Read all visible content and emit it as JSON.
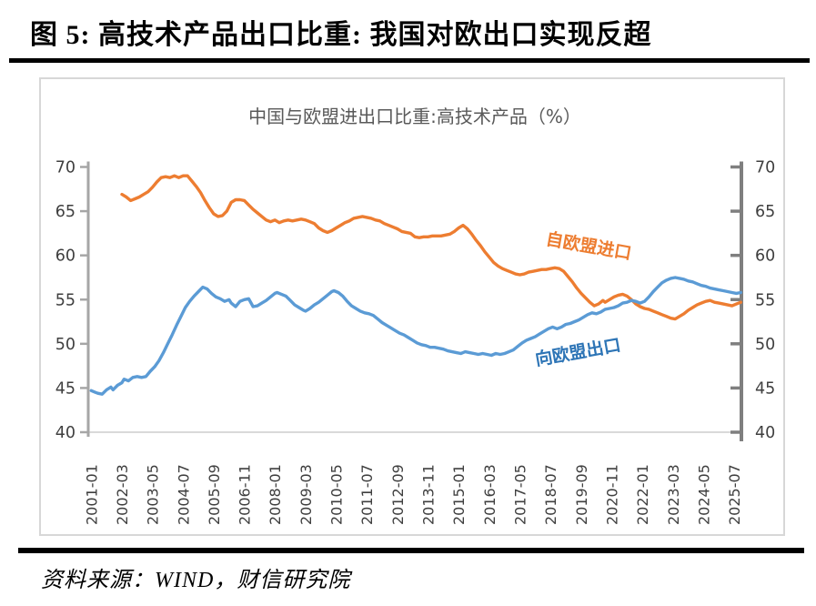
{
  "page": {
    "title": "图 5: 高技术产品出口比重: 我国对欧出口实现反超",
    "source": "资料来源：WIND，财信研究院"
  },
  "chart_data": {
    "type": "line",
    "title": "中国与欧盟进出口比重:高技术产品（%）",
    "title_color": "#595959",
    "grid": false,
    "legend_position": "inline-labels",
    "y_axis": {
      "min": 40,
      "max": 70,
      "step": 5,
      "ticks": [
        70,
        65,
        60,
        55,
        50,
        45,
        40
      ],
      "shown_left": true,
      "shown_right": true,
      "label_color": "#3f3f3f",
      "left_axis_color": "#a6a6a6",
      "right_axis_color": "#7f7f7f",
      "baseline_color": "#d9d9d9"
    },
    "x_axis": {
      "unit": "months since 2001-01",
      "months_per_tick": 14,
      "tick_labels": [
        "2001-01",
        "2002-03",
        "2003-05",
        "2004-07",
        "2005-09",
        "2006-11",
        "2008-01",
        "2009-03",
        "2010-05",
        "2011-07",
        "2012-09",
        "2013-11",
        "2015-01",
        "2016-03",
        "2017-05",
        "2018-07",
        "2019-09",
        "2020-11",
        "2022-01",
        "2023-03",
        "2024-05",
        "2025-07"
      ],
      "label_color": "#3f3f3f",
      "label_rotation": -90
    },
    "series": [
      {
        "name": "自欧盟进口",
        "color": "#ED7D31",
        "label": {
          "text": "自欧盟进口",
          "m": 227,
          "v": 60.4,
          "rotate": 10,
          "color": "#ED7D31"
        },
        "points": [
          [
            14,
            66.9
          ],
          [
            16,
            66.6
          ],
          [
            18,
            66.2
          ],
          [
            20,
            66.4
          ],
          [
            22,
            66.6
          ],
          [
            24,
            66.9
          ],
          [
            26,
            67.2
          ],
          [
            28,
            67.7
          ],
          [
            30,
            68.3
          ],
          [
            32,
            68.8
          ],
          [
            34,
            68.9
          ],
          [
            36,
            68.8
          ],
          [
            38,
            69.0
          ],
          [
            40,
            68.8
          ],
          [
            42,
            69.0
          ],
          [
            44,
            69.0
          ],
          [
            46,
            68.4
          ],
          [
            48,
            67.8
          ],
          [
            50,
            67.1
          ],
          [
            52,
            66.2
          ],
          [
            54,
            65.4
          ],
          [
            56,
            64.7
          ],
          [
            58,
            64.4
          ],
          [
            60,
            64.5
          ],
          [
            62,
            65.0
          ],
          [
            64,
            66.0
          ],
          [
            66,
            66.3
          ],
          [
            68,
            66.3
          ],
          [
            70,
            66.2
          ],
          [
            72,
            65.7
          ],
          [
            74,
            65.2
          ],
          [
            76,
            64.8
          ],
          [
            78,
            64.4
          ],
          [
            80,
            64.0
          ],
          [
            82,
            63.8
          ],
          [
            84,
            64.0
          ],
          [
            86,
            63.7
          ],
          [
            88,
            63.9
          ],
          [
            90,
            64.0
          ],
          [
            92,
            63.9
          ],
          [
            94,
            64.0
          ],
          [
            96,
            64.1
          ],
          [
            98,
            64.0
          ],
          [
            100,
            63.8
          ],
          [
            102,
            63.6
          ],
          [
            104,
            63.1
          ],
          [
            106,
            62.8
          ],
          [
            108,
            62.6
          ],
          [
            110,
            62.8
          ],
          [
            112,
            63.1
          ],
          [
            114,
            63.4
          ],
          [
            116,
            63.7
          ],
          [
            118,
            63.9
          ],
          [
            120,
            64.2
          ],
          [
            122,
            64.3
          ],
          [
            124,
            64.4
          ],
          [
            126,
            64.3
          ],
          [
            128,
            64.2
          ],
          [
            130,
            64.0
          ],
          [
            132,
            63.9
          ],
          [
            134,
            63.6
          ],
          [
            136,
            63.4
          ],
          [
            138,
            63.2
          ],
          [
            140,
            63.0
          ],
          [
            142,
            62.7
          ],
          [
            144,
            62.6
          ],
          [
            146,
            62.5
          ],
          [
            148,
            62.1
          ],
          [
            150,
            62.0
          ],
          [
            152,
            62.1
          ],
          [
            154,
            62.1
          ],
          [
            156,
            62.2
          ],
          [
            158,
            62.2
          ],
          [
            160,
            62.2
          ],
          [
            162,
            62.3
          ],
          [
            164,
            62.4
          ],
          [
            166,
            62.7
          ],
          [
            168,
            63.1
          ],
          [
            170,
            63.4
          ],
          [
            172,
            63.0
          ],
          [
            174,
            62.4
          ],
          [
            176,
            61.7
          ],
          [
            178,
            61.1
          ],
          [
            180,
            60.4
          ],
          [
            182,
            59.8
          ],
          [
            184,
            59.2
          ],
          [
            186,
            58.8
          ],
          [
            188,
            58.5
          ],
          [
            190,
            58.3
          ],
          [
            192,
            58.1
          ],
          [
            194,
            57.9
          ],
          [
            196,
            57.8
          ],
          [
            198,
            57.9
          ],
          [
            200,
            58.1
          ],
          [
            202,
            58.2
          ],
          [
            204,
            58.3
          ],
          [
            206,
            58.4
          ],
          [
            208,
            58.4
          ],
          [
            210,
            58.5
          ],
          [
            212,
            58.6
          ],
          [
            214,
            58.5
          ],
          [
            216,
            58.2
          ],
          [
            218,
            57.6
          ],
          [
            220,
            57.0
          ],
          [
            222,
            56.3
          ],
          [
            224,
            55.7
          ],
          [
            226,
            55.2
          ],
          [
            228,
            54.7
          ],
          [
            230,
            54.3
          ],
          [
            232,
            54.5
          ],
          [
            234,
            54.9
          ],
          [
            235,
            54.7
          ],
          [
            237,
            55.0
          ],
          [
            239,
            55.3
          ],
          [
            241,
            55.5
          ],
          [
            243,
            55.6
          ],
          [
            245,
            55.4
          ],
          [
            247,
            55.0
          ],
          [
            249,
            54.5
          ],
          [
            251,
            54.2
          ],
          [
            253,
            54.0
          ],
          [
            255,
            53.9
          ],
          [
            257,
            53.7
          ],
          [
            259,
            53.5
          ],
          [
            261,
            53.3
          ],
          [
            263,
            53.1
          ],
          [
            265,
            52.9
          ],
          [
            267,
            52.8
          ],
          [
            269,
            53.1
          ],
          [
            271,
            53.4
          ],
          [
            273,
            53.8
          ],
          [
            275,
            54.1
          ],
          [
            277,
            54.4
          ],
          [
            279,
            54.6
          ],
          [
            281,
            54.8
          ],
          [
            283,
            54.9
          ],
          [
            285,
            54.7
          ],
          [
            287,
            54.6
          ],
          [
            289,
            54.5
          ],
          [
            291,
            54.4
          ],
          [
            293,
            54.3
          ],
          [
            295,
            54.5
          ],
          [
            297,
            54.7
          ]
        ]
      },
      {
        "name": "向欧盟出口",
        "color": "#5B9BD5",
        "label": {
          "text": "向欧盟出口",
          "m": 223,
          "v": 48.4,
          "rotate": -10,
          "color": "#2E75B6"
        },
        "points": [
          [
            0,
            44.7
          ],
          [
            2,
            44.5
          ],
          [
            3,
            44.4
          ],
          [
            5,
            44.3
          ],
          [
            7,
            44.8
          ],
          [
            9,
            45.1
          ],
          [
            10,
            44.8
          ],
          [
            12,
            45.3
          ],
          [
            14,
            45.6
          ],
          [
            15,
            46.0
          ],
          [
            17,
            45.8
          ],
          [
            19,
            46.2
          ],
          [
            21,
            46.3
          ],
          [
            23,
            46.2
          ],
          [
            25,
            46.3
          ],
          [
            27,
            46.9
          ],
          [
            29,
            47.4
          ],
          [
            31,
            48.1
          ],
          [
            33,
            49.0
          ],
          [
            35,
            50.0
          ],
          [
            37,
            51.0
          ],
          [
            39,
            52.1
          ],
          [
            41,
            53.1
          ],
          [
            43,
            54.1
          ],
          [
            45,
            54.8
          ],
          [
            47,
            55.4
          ],
          [
            49,
            55.9
          ],
          [
            51,
            56.4
          ],
          [
            53,
            56.2
          ],
          [
            55,
            55.7
          ],
          [
            57,
            55.3
          ],
          [
            59,
            55.1
          ],
          [
            61,
            54.8
          ],
          [
            63,
            55.0
          ],
          [
            64,
            54.6
          ],
          [
            66,
            54.2
          ],
          [
            68,
            54.8
          ],
          [
            70,
            55.0
          ],
          [
            72,
            55.1
          ],
          [
            74,
            54.2
          ],
          [
            76,
            54.3
          ],
          [
            78,
            54.6
          ],
          [
            80,
            54.9
          ],
          [
            82,
            55.3
          ],
          [
            84,
            55.7
          ],
          [
            85,
            55.8
          ],
          [
            87,
            55.6
          ],
          [
            89,
            55.4
          ],
          [
            91,
            54.9
          ],
          [
            93,
            54.4
          ],
          [
            95,
            54.1
          ],
          [
            97,
            53.8
          ],
          [
            98,
            53.7
          ],
          [
            100,
            54.0
          ],
          [
            102,
            54.4
          ],
          [
            104,
            54.7
          ],
          [
            106,
            55.1
          ],
          [
            108,
            55.5
          ],
          [
            110,
            55.9
          ],
          [
            111,
            56.0
          ],
          [
            113,
            55.8
          ],
          [
            115,
            55.4
          ],
          [
            117,
            54.8
          ],
          [
            119,
            54.3
          ],
          [
            121,
            54.0
          ],
          [
            123,
            53.7
          ],
          [
            125,
            53.5
          ],
          [
            127,
            53.4
          ],
          [
            129,
            53.2
          ],
          [
            131,
            52.8
          ],
          [
            133,
            52.4
          ],
          [
            135,
            52.1
          ],
          [
            137,
            51.8
          ],
          [
            139,
            51.5
          ],
          [
            141,
            51.2
          ],
          [
            143,
            51.0
          ],
          [
            145,
            50.7
          ],
          [
            147,
            50.4
          ],
          [
            149,
            50.1
          ],
          [
            151,
            49.9
          ],
          [
            153,
            49.8
          ],
          [
            155,
            49.6
          ],
          [
            157,
            49.6
          ],
          [
            159,
            49.5
          ],
          [
            161,
            49.4
          ],
          [
            163,
            49.2
          ],
          [
            165,
            49.1
          ],
          [
            167,
            49.0
          ],
          [
            169,
            48.9
          ],
          [
            171,
            49.1
          ],
          [
            173,
            49.0
          ],
          [
            175,
            48.9
          ],
          [
            177,
            48.8
          ],
          [
            179,
            48.9
          ],
          [
            181,
            48.8
          ],
          [
            183,
            48.7
          ],
          [
            185,
            48.9
          ],
          [
            187,
            48.8
          ],
          [
            189,
            48.9
          ],
          [
            191,
            49.1
          ],
          [
            193,
            49.3
          ],
          [
            195,
            49.7
          ],
          [
            197,
            50.1
          ],
          [
            199,
            50.4
          ],
          [
            201,
            50.6
          ],
          [
            203,
            50.8
          ],
          [
            205,
            51.1
          ],
          [
            207,
            51.4
          ],
          [
            209,
            51.7
          ],
          [
            211,
            51.9
          ],
          [
            213,
            51.7
          ],
          [
            215,
            51.9
          ],
          [
            217,
            52.2
          ],
          [
            219,
            52.3
          ],
          [
            221,
            52.5
          ],
          [
            223,
            52.7
          ],
          [
            225,
            53.0
          ],
          [
            227,
            53.3
          ],
          [
            229,
            53.5
          ],
          [
            231,
            53.4
          ],
          [
            233,
            53.6
          ],
          [
            235,
            53.9
          ],
          [
            237,
            54.0
          ],
          [
            239,
            54.1
          ],
          [
            241,
            54.3
          ],
          [
            243,
            54.6
          ],
          [
            245,
            54.7
          ],
          [
            247,
            54.9
          ],
          [
            249,
            54.8
          ],
          [
            251,
            54.6
          ],
          [
            253,
            54.8
          ],
          [
            255,
            55.3
          ],
          [
            257,
            55.9
          ],
          [
            259,
            56.4
          ],
          [
            261,
            56.9
          ],
          [
            263,
            57.2
          ],
          [
            265,
            57.4
          ],
          [
            267,
            57.5
          ],
          [
            269,
            57.4
          ],
          [
            271,
            57.3
          ],
          [
            273,
            57.1
          ],
          [
            275,
            57.0
          ],
          [
            277,
            56.8
          ],
          [
            279,
            56.6
          ],
          [
            281,
            56.5
          ],
          [
            283,
            56.3
          ],
          [
            285,
            56.2
          ],
          [
            287,
            56.1
          ],
          [
            289,
            56.0
          ],
          [
            291,
            55.9
          ],
          [
            293,
            55.8
          ],
          [
            295,
            55.7
          ],
          [
            297,
            55.8
          ]
        ]
      }
    ]
  }
}
